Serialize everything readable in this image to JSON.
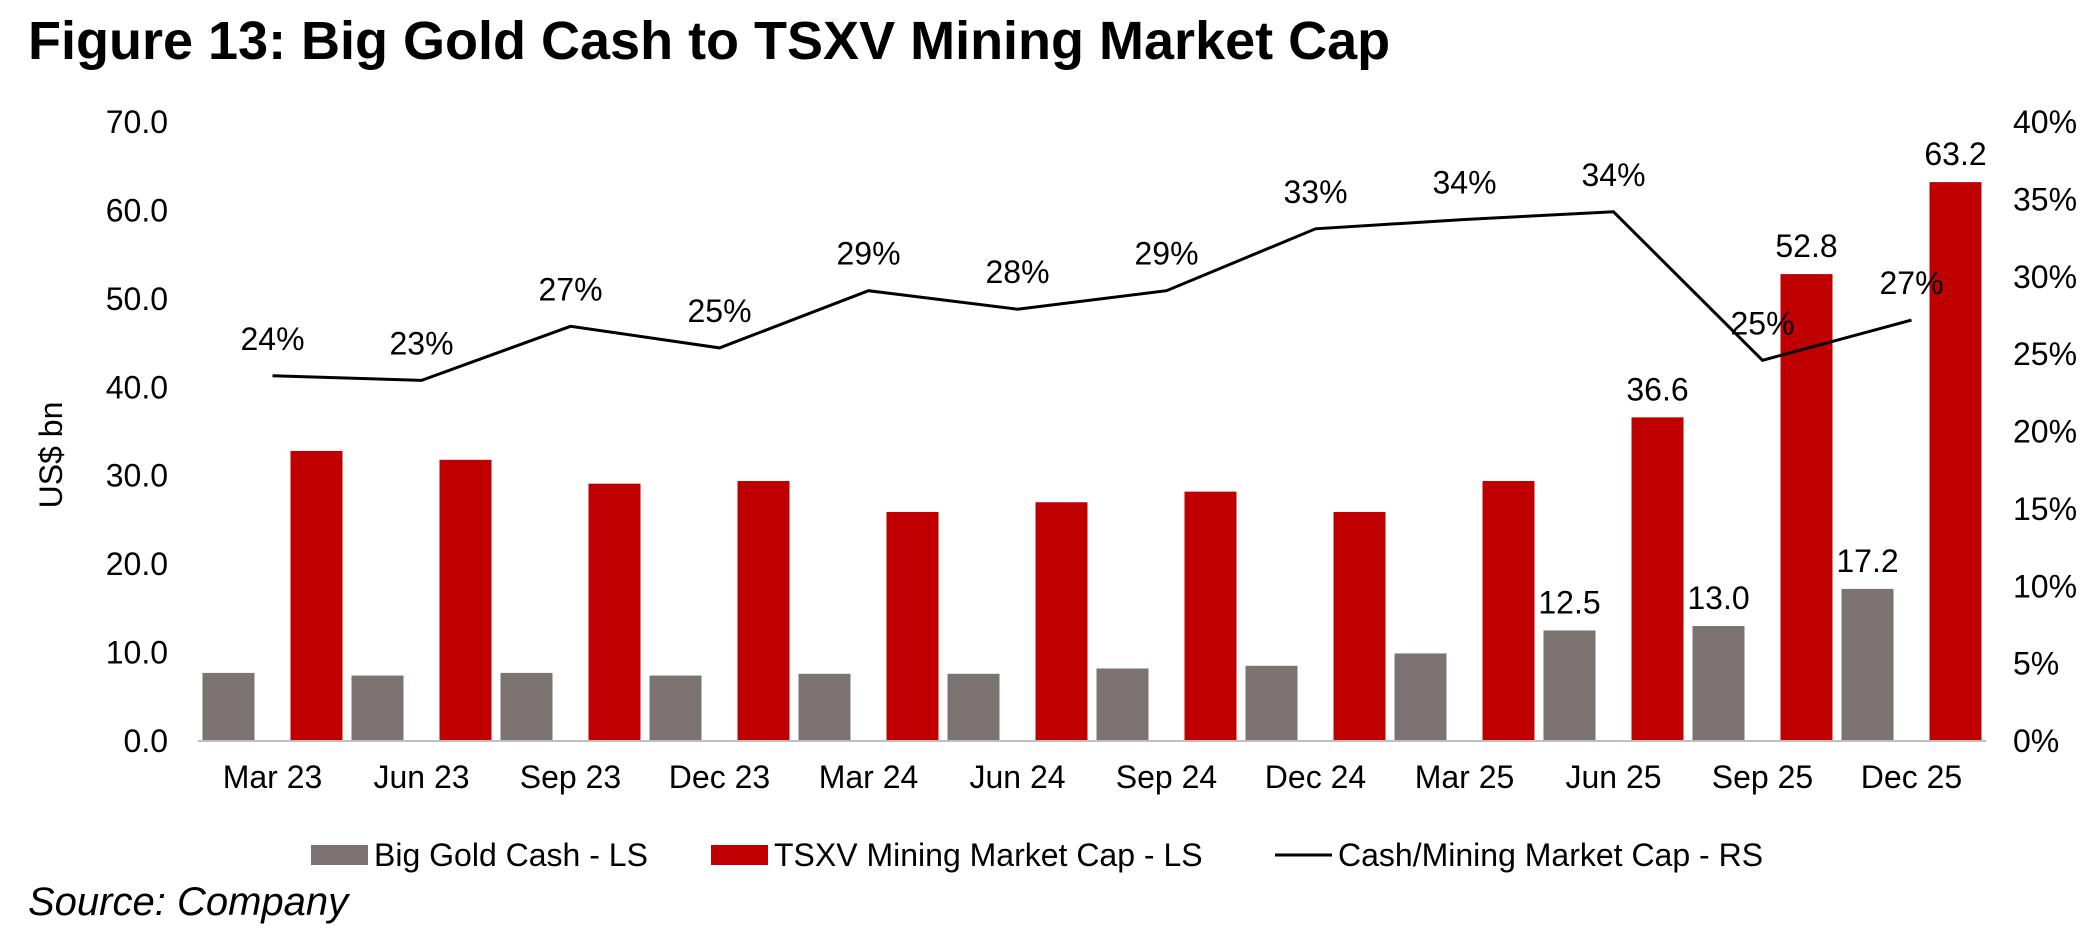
{
  "title": "Figure 13: Big Gold Cash to TSXV Mining Market Cap",
  "source": "Source: Company",
  "colors": {
    "cash": "#7a7371",
    "mining": "#c00000",
    "ratio": "#000000",
    "axis": "#bfbfbf"
  },
  "chart_data": {
    "type": "bar",
    "categories": [
      "Mar 23",
      "Jun 23",
      "Sep 23",
      "Dec 23",
      "Mar 24",
      "Jun 24",
      "Sep 24",
      "Dec 24",
      "Mar 25",
      "Jun 25",
      "Sep 25",
      "Dec 25"
    ],
    "series": [
      {
        "name": "Big Gold Cash - LS",
        "axis": "left",
        "type": "bar",
        "values": [
          7.7,
          7.4,
          7.7,
          7.4,
          7.6,
          7.6,
          8.2,
          8.5,
          9.9,
          12.5,
          13.0,
          17.2
        ]
      },
      {
        "name": "TSXV Mining Market Cap - LS",
        "axis": "left",
        "type": "bar",
        "values": [
          32.8,
          31.8,
          29.1,
          29.4,
          25.9,
          27.0,
          28.2,
          25.9,
          29.4,
          36.6,
          52.8,
          63.2
        ]
      },
      {
        "name": "Cash/Mining Market Cap - RS",
        "axis": "right",
        "type": "line",
        "values": [
          23.6,
          23.3,
          26.8,
          25.4,
          29.1,
          27.9,
          29.1,
          33.1,
          33.7,
          34.2,
          24.6,
          27.2
        ],
        "labels": [
          "24%",
          "23%",
          "27%",
          "25%",
          "29%",
          "28%",
          "29%",
          "33%",
          "34%",
          "34%",
          "25%",
          "27%"
        ]
      }
    ],
    "bar_value_labels": {
      "cash": [
        "",
        "",
        "",
        "",
        "",
        "",
        "",
        "",
        "",
        "12.5",
        "13.0",
        "17.2"
      ],
      "mining": [
        "",
        "",
        "",
        "",
        "",
        "",
        "",
        "",
        "",
        "36.6",
        "52.8",
        "63.2"
      ]
    },
    "left_axis": {
      "label": "US$ bn",
      "min": 0,
      "max": 70,
      "ticks": [
        "0.0",
        "10.0",
        "20.0",
        "30.0",
        "40.0",
        "50.0",
        "60.0",
        "70.0"
      ]
    },
    "right_axis": {
      "min": 0,
      "max": 40,
      "ticks": [
        "0%",
        "5%",
        "10%",
        "15%",
        "20%",
        "25%",
        "30%",
        "35%",
        "40%"
      ]
    },
    "legend": [
      "Big Gold Cash - LS",
      "TSXV Mining Market Cap - LS",
      "Cash/Mining Market Cap - RS"
    ],
    "legend_position": "bottom",
    "grid": false
  }
}
